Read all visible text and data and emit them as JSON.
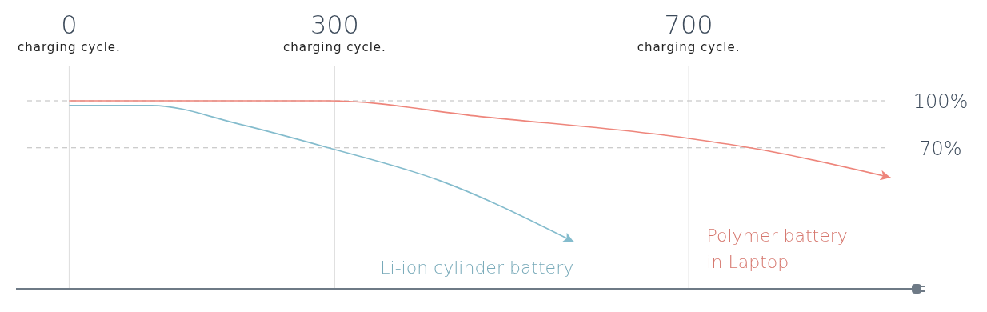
{
  "chart_data": {
    "type": "line",
    "xlabel": "charging cycle.",
    "xlim": [
      -60,
      952
    ],
    "xticks": [
      0,
      300,
      700
    ],
    "ylim": [
      -20,
      100
    ],
    "yticks": [
      {
        "value": 100,
        "label": "100%"
      },
      {
        "value": 70,
        "label": "70%"
      }
    ],
    "grid": "x",
    "marker": "none",
    "line_style": "solid",
    "ref_lines": [
      {
        "axis": "y",
        "value": 100,
        "color": "#bbbbbb",
        "line_style": "dashed"
      },
      {
        "axis": "y",
        "value": 70,
        "color": "#bbbbbb",
        "line_style": "dashed"
      }
    ],
    "series": [
      {
        "name": "Li-ion cylinder battery",
        "color": "#84bccd",
        "x": [
          0,
          93,
          193,
          293,
          419,
          570
        ],
        "values": [
          97,
          97,
          85,
          70,
          49,
          10
        ]
      },
      {
        "name": "Polymer battery in Laptop",
        "color": "#ee857b",
        "x": [
          0,
          293,
          464,
          700,
          780,
          928
        ],
        "values": [
          100,
          100,
          90,
          76,
          69,
          51
        ]
      }
    ]
  }
}
